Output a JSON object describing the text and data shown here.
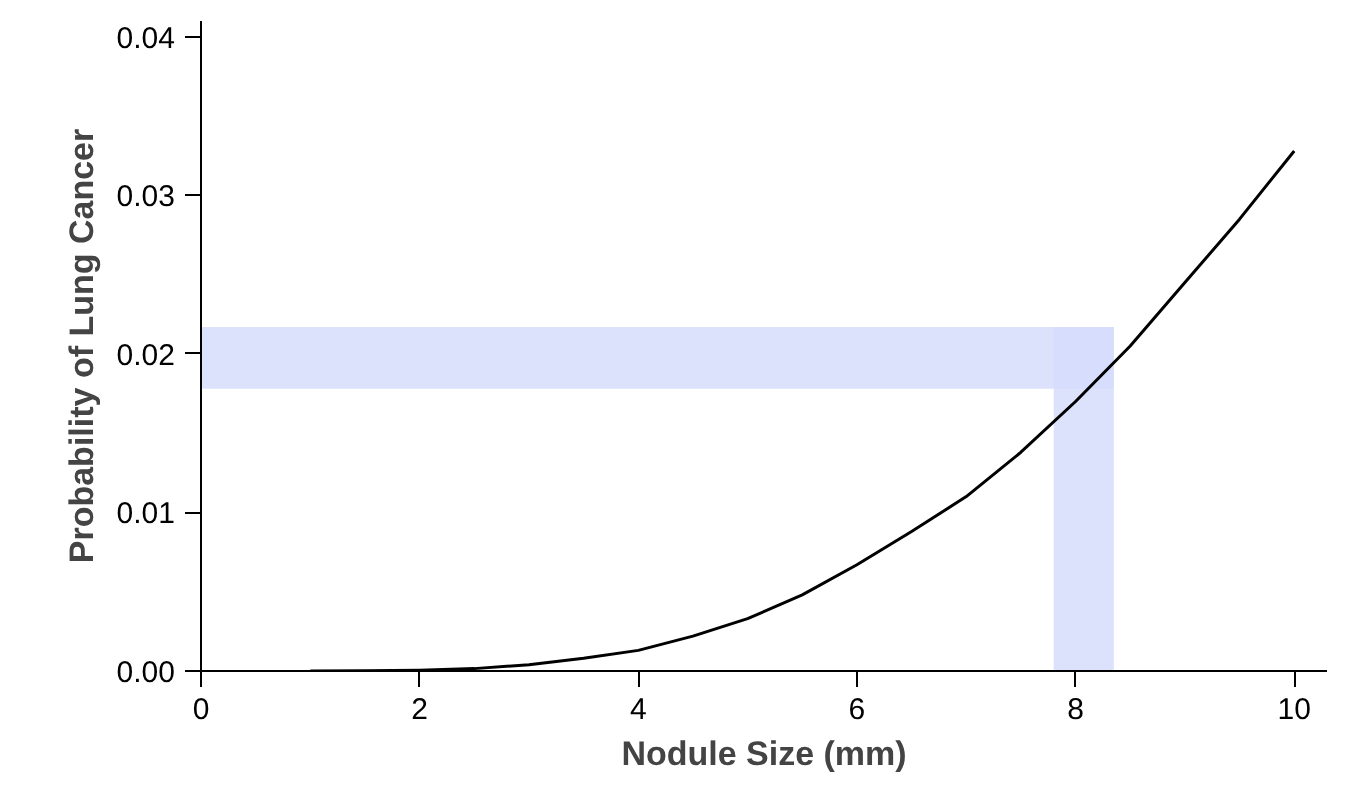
{
  "chart_data": {
    "type": "line",
    "xlabel": "Nodule Size (mm)",
    "ylabel": "Probability of Lung Cancer",
    "x": [
      1,
      1.5,
      2,
      2.5,
      3,
      3.5,
      4,
      4.5,
      5,
      5.5,
      6,
      6.5,
      7,
      7.5,
      8,
      8.5,
      9,
      9.5,
      10
    ],
    "series": [
      {
        "color": "#000000",
        "values": [
          0,
          1e-05,
          5e-05,
          0.00015,
          0.0004,
          0.0008,
          0.0013,
          0.0022,
          0.0033,
          0.0048,
          0.0067,
          0.0088,
          0.011,
          0.0138,
          0.017,
          0.0205,
          0.0245,
          0.0285,
          0.0328
        ]
      }
    ],
    "xlim": [
      0,
      10.3
    ],
    "ylim": [
      0,
      0.041
    ],
    "xticks": [
      0,
      2,
      4,
      6,
      8,
      10
    ],
    "yticks": [
      {
        "value": 0,
        "label": "0.00"
      },
      0.01,
      0.02,
      0.03,
      0.04
    ],
    "bands": [
      {
        "axis": "y",
        "from": 0.0178,
        "to": 0.0217,
        "color": "#d6dcfb"
      },
      {
        "axis": "x",
        "from": 7.8,
        "to": 8.35,
        "color": "#d6dcfb"
      }
    ],
    "grid": false,
    "marker": "none",
    "line_style": "solid"
  }
}
